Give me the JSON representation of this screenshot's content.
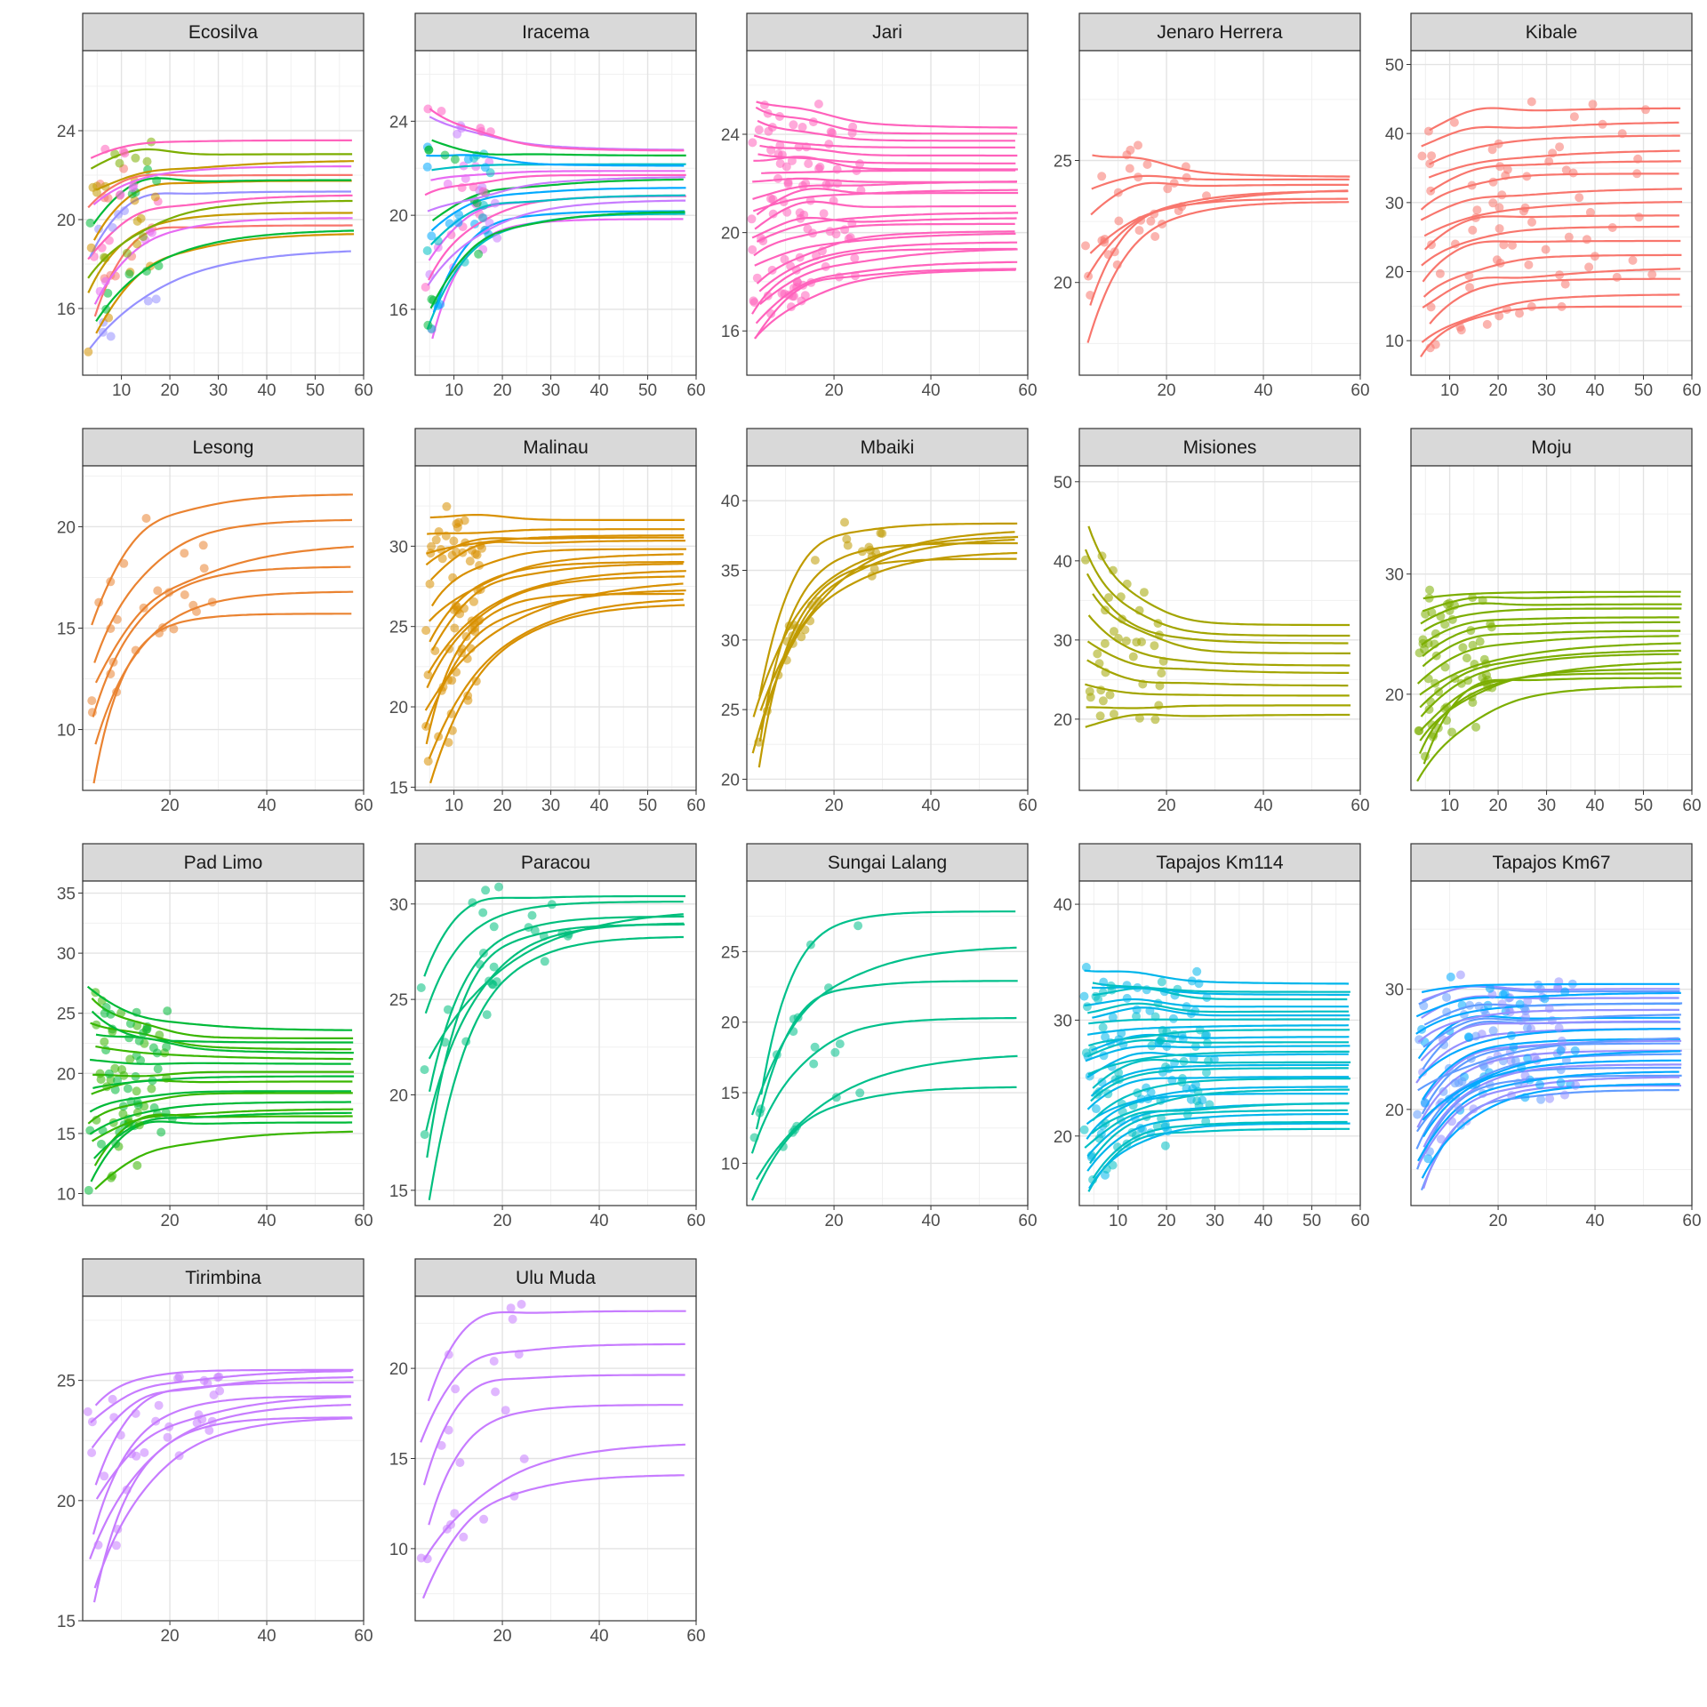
{
  "colors": {
    "Ecosilva": "#F8766D",
    "Iracema": "#E76BF3",
    "Jari": "#FF62BC",
    "Jenaro Herrera": "#F8766D",
    "Kibale": "#F8766D",
    "Lesong": "#EA8331",
    "Malinau": "#D89000",
    "Mbaiki": "#C09B00",
    "Misiones": "#A3A500",
    "Moju": "#7CAE00",
    "Pad Limo": "#39B600",
    "Paracou": "#00BF7D",
    "Sungai Lalang": "#00C08B",
    "Tapajos Km114": "#00BFC4",
    "Tapajos Km67": "#619CFF",
    "Tirimbina": "#C77CFF",
    "Ulu Muda": "#C77CFF"
  },
  "chart_data": [
    {
      "type": "scatter",
      "panel": "Ecosilva",
      "xlim": [
        2,
        60
      ],
      "ylim": [
        13,
        27.6
      ],
      "xticks": [
        10,
        20,
        30,
        40,
        50,
        60
      ],
      "yticks": [
        16,
        20,
        24
      ],
      "palette": [
        "#9590FF",
        "#D39200",
        "#00BA38",
        "#F8766D",
        "#E76BF3",
        "#C49A00",
        "#7CAE00",
        "#FF62BC"
      ],
      "n_curves": 16,
      "y_start": [
        14,
        22.5
      ],
      "y_end": [
        18.9,
        23.4
      ],
      "pt_x": [
        3,
        18
      ]
    },
    {
      "type": "scatter",
      "panel": "Iracema",
      "xlim": [
        2,
        60
      ],
      "ylim": [
        13.2,
        27
      ],
      "xticks": [
        10,
        20,
        30,
        40,
        50,
        60
      ],
      "yticks": [
        16,
        20,
        24
      ],
      "palette": [
        "#E76BF3",
        "#00BFC4",
        "#00A9FF",
        "#00BA38",
        "#C77CFF",
        "#FF61C3"
      ],
      "n_curves": 18,
      "y_start": [
        14.5,
        24.5
      ],
      "y_end": [
        19.8,
        22.8
      ],
      "pt_x": [
        4,
        19
      ]
    },
    {
      "type": "scatter",
      "panel": "Jari",
      "xlim": [
        2,
        60
      ],
      "ylim": [
        14.2,
        27.4
      ],
      "xticks": [
        20,
        40,
        60
      ],
      "yticks": [
        16,
        20,
        24
      ],
      "palette": [
        "#FF62BC"
      ],
      "n_curves": 24,
      "y_start": [
        15.5,
        25.5
      ],
      "y_end": [
        18.4,
        24.2
      ],
      "pt_x": [
        3,
        26
      ]
    },
    {
      "type": "scatter",
      "panel": "Jenaro Herrera",
      "xlim": [
        2,
        60
      ],
      "ylim": [
        16.2,
        29.5
      ],
      "xticks": [
        20,
        40,
        60
      ],
      "yticks": [
        20,
        25
      ],
      "palette": [
        "#F8766D"
      ],
      "n_curves": 7,
      "y_start": [
        17.5,
        25
      ],
      "y_end": [
        23.2,
        24.4
      ],
      "pt_x": [
        3,
        29
      ]
    },
    {
      "type": "scatter",
      "panel": "Kibale",
      "xlim": [
        2,
        60
      ],
      "ylim": [
        5,
        52
      ],
      "xticks": [
        10,
        20,
        30,
        40,
        50,
        60
      ],
      "yticks": [
        10,
        20,
        30,
        40,
        50
      ],
      "palette": [
        "#F8766D"
      ],
      "n_curves": 16,
      "y_start": [
        8,
        40
      ],
      "y_end": [
        15,
        43.5
      ],
      "pt_x": [
        4,
        52
      ]
    },
    {
      "type": "scatter",
      "panel": "Lesong",
      "xlim": [
        2,
        60
      ],
      "ylim": [
        7,
        23
      ],
      "xticks": [
        20,
        40,
        60
      ],
      "yticks": [
        10,
        15,
        20
      ],
      "palette": [
        "#EA8331"
      ],
      "n_curves": 6,
      "y_start": [
        7.5,
        15
      ],
      "y_end": [
        15.6,
        21.8
      ],
      "pt_x": [
        3,
        30
      ]
    },
    {
      "type": "scatter",
      "panel": "Malinau",
      "xlim": [
        2,
        60
      ],
      "ylim": [
        14.8,
        35
      ],
      "xticks": [
        10,
        20,
        30,
        40,
        50,
        60
      ],
      "yticks": [
        15,
        20,
        25,
        30
      ],
      "palette": [
        "#D89000"
      ],
      "n_curves": 16,
      "y_start": [
        15.5,
        32
      ],
      "y_end": [
        26.5,
        31.5
      ],
      "pt_x": [
        4,
        16
      ]
    },
    {
      "type": "scatter",
      "panel": "Mbaiki",
      "xlim": [
        2,
        60
      ],
      "ylim": [
        19.2,
        42.5
      ],
      "xticks": [
        20,
        40,
        60
      ],
      "yticks": [
        20,
        25,
        30,
        35,
        40
      ],
      "palette": [
        "#C09B00"
      ],
      "n_curves": 7,
      "y_start": [
        21,
        26
      ],
      "y_end": [
        36,
        38.5
      ],
      "pt_x": [
        3,
        36
      ]
    },
    {
      "type": "scatter",
      "panel": "Misiones",
      "xlim": [
        2,
        60
      ],
      "ylim": [
        11,
        52
      ],
      "xticks": [
        20,
        40,
        60
      ],
      "yticks": [
        20,
        30,
        40,
        50
      ],
      "palette": [
        "#A3A500"
      ],
      "n_curves": 10,
      "y_start": [
        19,
        44
      ],
      "y_end": [
        20.5,
        32
      ],
      "pt_x": [
        3,
        20
      ]
    },
    {
      "type": "scatter",
      "panel": "Moju",
      "xlim": [
        2,
        60
      ],
      "ylim": [
        12,
        39
      ],
      "xticks": [
        10,
        20,
        30,
        40,
        50,
        60
      ],
      "yticks": [
        20,
        30
      ],
      "palette": [
        "#7CAE00"
      ],
      "n_curves": 16,
      "y_start": [
        13,
        28
      ],
      "y_end": [
        20.7,
        28.5
      ],
      "pt_x": [
        3,
        19
      ]
    },
    {
      "type": "scatter",
      "panel": "Pad Limo",
      "xlim": [
        2,
        60
      ],
      "ylim": [
        9,
        36
      ],
      "xticks": [
        20,
        40,
        60
      ],
      "yticks": [
        10,
        15,
        20,
        25,
        30,
        35
      ],
      "palette": [
        "#39B600",
        "#00BA38"
      ],
      "n_curves": 18,
      "y_start": [
        10,
        27
      ],
      "y_end": [
        15.3,
        23.5
      ],
      "pt_x": [
        3,
        21
      ]
    },
    {
      "type": "scatter",
      "panel": "Paracou",
      "xlim": [
        2,
        60
      ],
      "ylim": [
        14.2,
        31.2
      ],
      "xticks": [
        20,
        40,
        60
      ],
      "yticks": [
        15,
        20,
        25,
        30
      ],
      "palette": [
        "#00BF7D"
      ],
      "n_curves": 7,
      "y_start": [
        14.5,
        26
      ],
      "y_end": [
        28.5,
        30.4
      ],
      "pt_x": [
        3,
        35
      ]
    },
    {
      "type": "scatter",
      "panel": "Sungai Lalang",
      "xlim": [
        2,
        60
      ],
      "ylim": [
        7,
        30
      ],
      "xticks": [
        20,
        40,
        60
      ],
      "yticks": [
        10,
        15,
        20,
        25
      ],
      "palette": [
        "#00C08B"
      ],
      "n_curves": 6,
      "y_start": [
        7.5,
        15
      ],
      "y_end": [
        15.5,
        28
      ],
      "pt_x": [
        3,
        27
      ]
    },
    {
      "type": "scatter",
      "panel": "Tapajos Km114",
      "xlim": [
        2,
        60
      ],
      "ylim": [
        14,
        42
      ],
      "xticks": [
        10,
        20,
        30,
        40,
        50,
        60
      ],
      "yticks": [
        20,
        30,
        40
      ],
      "palette": [
        "#00BFC4",
        "#00B6EB"
      ],
      "n_curves": 30,
      "y_start": [
        15,
        34
      ],
      "y_end": [
        20.5,
        33
      ],
      "pt_x": [
        3,
        30
      ]
    },
    {
      "type": "scatter",
      "panel": "Tapajos Km67",
      "xlim": [
        2,
        60
      ],
      "ylim": [
        12,
        39
      ],
      "xticks": [
        20,
        40,
        60
      ],
      "yticks": [
        20,
        30
      ],
      "palette": [
        "#619CFF",
        "#9590FF",
        "#00A9FF"
      ],
      "n_curves": 30,
      "y_start": [
        13,
        29.5
      ],
      "y_end": [
        21.7,
        30.5
      ],
      "pt_x": [
        3,
        36
      ]
    },
    {
      "type": "scatter",
      "panel": "Tirimbina",
      "xlim": [
        2,
        60
      ],
      "ylim": [
        15,
        28.5
      ],
      "xticks": [
        20,
        40,
        60
      ],
      "yticks": [
        15,
        20,
        25
      ],
      "palette": [
        "#C77CFF"
      ],
      "n_curves": 9,
      "y_start": [
        15.5,
        24
      ],
      "y_end": [
        23.3,
        25.6
      ],
      "pt_x": [
        3,
        31
      ]
    },
    {
      "type": "scatter",
      "panel": "Ulu Muda",
      "xlim": [
        2,
        60
      ],
      "ylim": [
        6,
        24
      ],
      "xticks": [
        20,
        40,
        60
      ],
      "yticks": [
        10,
        15,
        20
      ],
      "palette": [
        "#C77CFF"
      ],
      "n_curves": 6,
      "y_start": [
        7,
        18
      ],
      "y_end": [
        14.3,
        23.3
      ],
      "pt_x": [
        3,
        25
      ]
    }
  ]
}
